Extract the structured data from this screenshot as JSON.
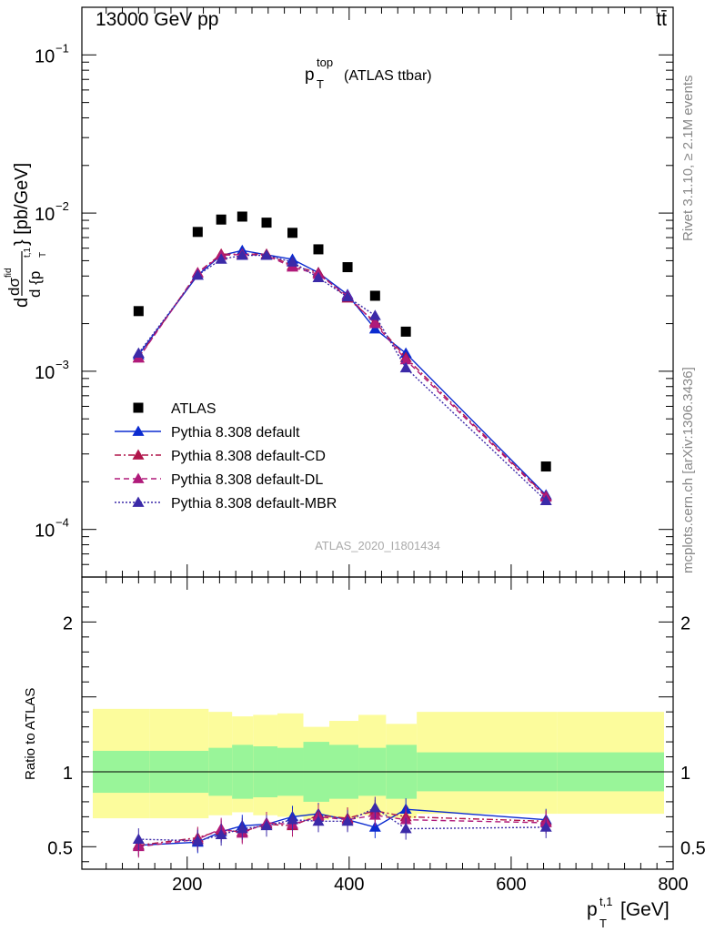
{
  "header": {
    "energy": "13000 GeV pp",
    "process": "tt̄"
  },
  "side_labels": {
    "rivet": "Rivet 3.1.10, ≥ 2.1M events",
    "source": "mcplots.cern.ch [arXiv:1306.3436]"
  },
  "colors": {
    "data": "#000000",
    "default": "#0b2bd0",
    "default_cd": "#b0154a",
    "default_dl": "#b01a7a",
    "default_mbr": "#3b2aa8",
    "band_inner": "#99f599",
    "band_outer": "#fcfc9c"
  },
  "chart_data": [
    {
      "type": "scatter",
      "title_main": "p",
      "title_sup": "top",
      "title_sub": "T",
      "title_rest": "(ATLAS ttbar)",
      "ylabel": "d dσ^fid / d {p_T^t,1} [pb/GeV]",
      "ylabel_parts": {
        "d1": "d",
        "ds": "dσ",
        "fid": "fid",
        "d2": "d {p",
        "T": "T",
        "t1": "t,1",
        "unit": "} [pb/GeV]"
      },
      "watermark": "ATLAS_2020_I1801434",
      "yscale": "log",
      "ylim": [
        5e-05,
        0.2
      ],
      "xlim": [
        70,
        800
      ],
      "y_ticks": [
        {
          "v": 0.1,
          "base": "10",
          "exp": "−1"
        },
        {
          "v": 0.01,
          "base": "10",
          "exp": "−2"
        },
        {
          "v": 0.001,
          "base": "10",
          "exp": "−3"
        },
        {
          "v": 0.0001,
          "base": "10",
          "exp": "−4"
        }
      ],
      "legend_position": "lower-left",
      "series": [
        {
          "name": "ATLAS",
          "key": "data",
          "marker": "square",
          "line": "none",
          "x": [
            140,
            213,
            242,
            268,
            298,
            330,
            362,
            398,
            432,
            470,
            643
          ],
          "y": [
            0.0024,
            0.0076,
            0.0091,
            0.0095,
            0.0087,
            0.0075,
            0.0059,
            0.00455,
            0.003,
            0.00178,
            0.00025
          ]
        },
        {
          "name": "Pythia 8.308 default",
          "key": "default",
          "marker": "triangle",
          "line": "solid",
          "x": [
            140,
            213,
            242,
            268,
            298,
            330,
            362,
            398,
            432,
            470,
            643
          ],
          "y": [
            0.00127,
            0.00405,
            0.0054,
            0.0058,
            0.00545,
            0.0051,
            0.0042,
            0.00305,
            0.00185,
            0.0013,
            0.000165
          ]
        },
        {
          "name": "Pythia 8.308 default-CD",
          "key": "default_cd",
          "marker": "triangle",
          "line": "dashdot",
          "x": [
            140,
            213,
            242,
            268,
            298,
            330,
            362,
            398,
            432,
            470,
            643
          ],
          "y": [
            0.00122,
            0.0042,
            0.0055,
            0.0055,
            0.0055,
            0.00465,
            0.0042,
            0.0029,
            0.00205,
            0.00122,
            0.000162
          ]
        },
        {
          "name": "Pythia 8.308 default-DL",
          "key": "default_dl",
          "marker": "triangle",
          "line": "dashed",
          "x": [
            140,
            213,
            242,
            268,
            298,
            330,
            362,
            398,
            432,
            470,
            643
          ],
          "y": [
            0.00121,
            0.00418,
            0.0054,
            0.00548,
            0.0054,
            0.00455,
            0.0041,
            0.003,
            0.002,
            0.00118,
            0.00016
          ]
        },
        {
          "name": "Pythia 8.308 default-MBR",
          "key": "default_mbr",
          "marker": "triangle",
          "line": "dotted",
          "x": [
            140,
            213,
            242,
            268,
            298,
            330,
            362,
            398,
            432,
            470,
            643
          ],
          "y": [
            0.0013,
            0.00405,
            0.0051,
            0.0054,
            0.0054,
            0.0049,
            0.0039,
            0.00295,
            0.00225,
            0.00105,
            0.000152
          ]
        }
      ]
    },
    {
      "type": "scatter",
      "ylabel": "Ratio to ATLAS",
      "xlabel_main": "p",
      "xlabel_sup": "t,1",
      "xlabel_sub": "T",
      "xlabel_rest": "[GeV]",
      "xlim": [
        70,
        800
      ],
      "ylim": [
        0.35,
        2.3
      ],
      "x_ticks": [
        200,
        400,
        600,
        800
      ],
      "y_ticks": [
        {
          "v": 0.5,
          "label": "0.5"
        },
        {
          "v": 1,
          "label": "1"
        },
        {
          "v": 2,
          "label": "2"
        }
      ],
      "bands": {
        "edges": [
          70,
          140,
          213,
          242,
          268,
          298,
          330,
          362,
          398,
          432,
          470,
          643,
          800
        ],
        "inner_lo": [
          0.86,
          0.86,
          0.84,
          0.82,
          0.83,
          0.84,
          0.8,
          0.82,
          0.84,
          0.82,
          0.87,
          0.87
        ],
        "inner_hi": [
          1.14,
          1.14,
          1.16,
          1.18,
          1.17,
          1.16,
          1.2,
          1.18,
          1.16,
          1.18,
          1.13,
          1.13
        ],
        "outer_lo": [
          0.69,
          0.69,
          0.71,
          0.73,
          0.71,
          0.7,
          0.68,
          0.69,
          0.71,
          0.69,
          0.72,
          0.72
        ],
        "outer_hi": [
          1.42,
          1.42,
          1.4,
          1.37,
          1.38,
          1.39,
          1.3,
          1.34,
          1.38,
          1.32,
          1.4,
          1.4
        ]
      },
      "series": [
        {
          "name": "Pythia 8.308 default",
          "key": "default",
          "line": "solid",
          "x": [
            140,
            213,
            242,
            268,
            298,
            330,
            362,
            398,
            432,
            470,
            643
          ],
          "y": [
            0.51,
            0.53,
            0.6,
            0.64,
            0.65,
            0.7,
            0.72,
            0.68,
            0.63,
            0.75,
            0.68
          ]
        },
        {
          "name": "Pythia 8.308 default-CD",
          "key": "default_cd",
          "line": "dashdot",
          "x": [
            140,
            213,
            242,
            268,
            298,
            330,
            362,
            398,
            432,
            470,
            643
          ],
          "y": [
            0.51,
            0.56,
            0.61,
            0.6,
            0.65,
            0.64,
            0.71,
            0.69,
            0.74,
            0.7,
            0.67
          ]
        },
        {
          "name": "Pythia 8.308 default-DL",
          "key": "default_dl",
          "line": "dashed",
          "x": [
            140,
            213,
            242,
            268,
            298,
            330,
            362,
            398,
            432,
            470,
            643
          ],
          "y": [
            0.5,
            0.55,
            0.62,
            0.59,
            0.66,
            0.65,
            0.7,
            0.68,
            0.71,
            0.68,
            0.66
          ]
        },
        {
          "name": "Pythia 8.308 default-MBR",
          "key": "default_mbr",
          "line": "dotted",
          "x": [
            140,
            213,
            242,
            268,
            298,
            330,
            362,
            398,
            432,
            470,
            643
          ],
          "y": [
            0.55,
            0.54,
            0.58,
            0.62,
            0.64,
            0.68,
            0.67,
            0.67,
            0.76,
            0.62,
            0.63
          ]
        }
      ]
    }
  ]
}
